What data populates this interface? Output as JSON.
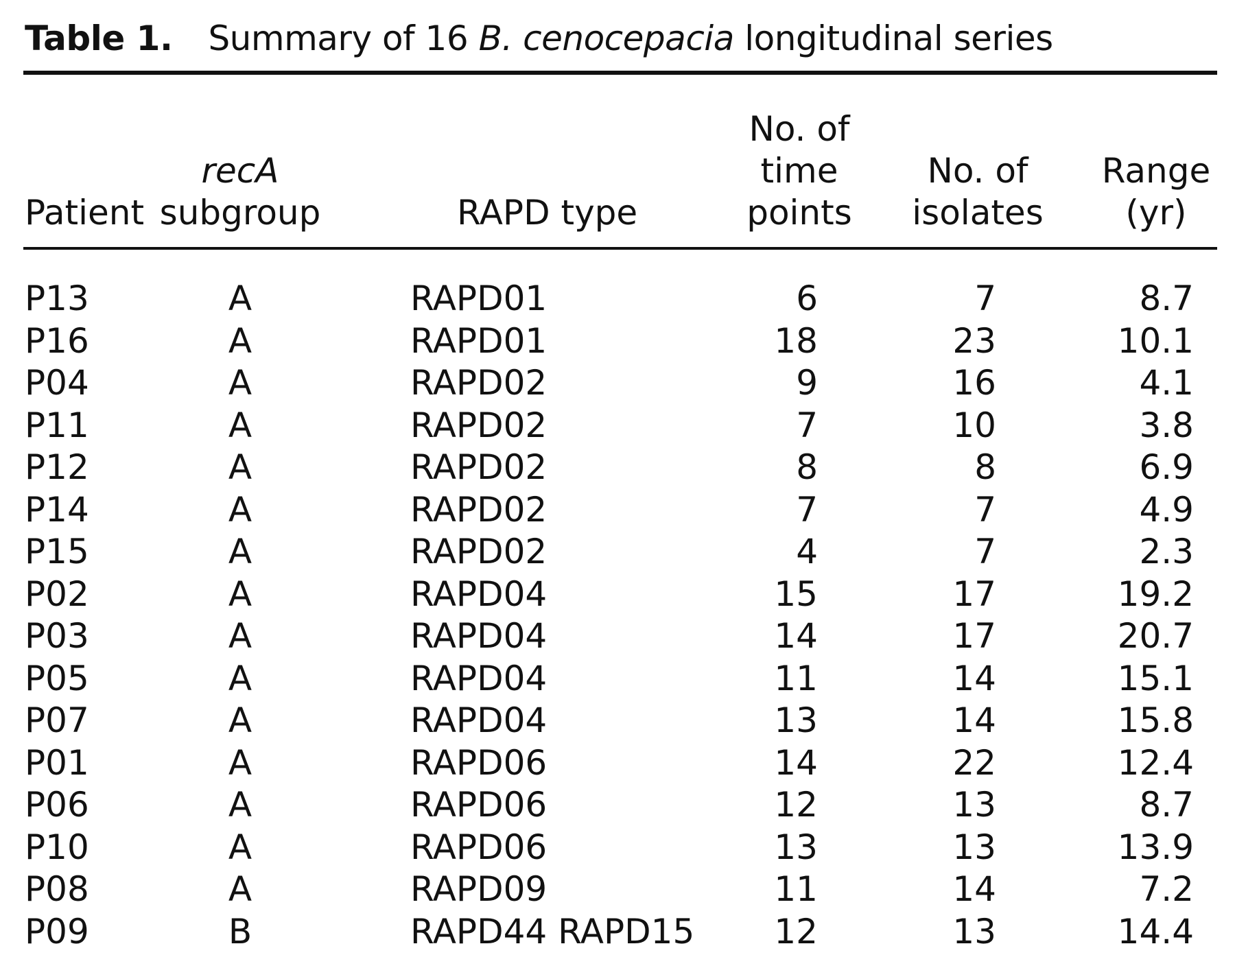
{
  "title": {
    "label": "Table 1.",
    "pre": "Summary of 16 ",
    "species": "B. cenocepacia",
    "post": " longitudinal series"
  },
  "headers": {
    "patient": [
      "Patient"
    ],
    "subgroup": [
      "recA",
      "subgroup"
    ],
    "rapd": [
      "RAPD type"
    ],
    "time_points": [
      "No. of",
      "time",
      "points"
    ],
    "isolates": [
      "No. of",
      "isolates"
    ],
    "range": [
      "Range",
      "(yr)"
    ]
  },
  "rows": [
    {
      "patient": "P13",
      "subgroup": "A",
      "rapd": "RAPD01",
      "time_points": "6",
      "isolates": "7",
      "range": "8.7"
    },
    {
      "patient": "P16",
      "subgroup": "A",
      "rapd": "RAPD01",
      "time_points": "18",
      "isolates": "23",
      "range": "10.1"
    },
    {
      "patient": "P04",
      "subgroup": "A",
      "rapd": "RAPD02",
      "time_points": "9",
      "isolates": "16",
      "range": "4.1"
    },
    {
      "patient": "P11",
      "subgroup": "A",
      "rapd": "RAPD02",
      "time_points": "7",
      "isolates": "10",
      "range": "3.8"
    },
    {
      "patient": "P12",
      "subgroup": "A",
      "rapd": "RAPD02",
      "time_points": "8",
      "isolates": "8",
      "range": "6.9"
    },
    {
      "patient": "P14",
      "subgroup": "A",
      "rapd": "RAPD02",
      "time_points": "7",
      "isolates": "7",
      "range": "4.9"
    },
    {
      "patient": "P15",
      "subgroup": "A",
      "rapd": "RAPD02",
      "time_points": "4",
      "isolates": "7",
      "range": "2.3"
    },
    {
      "patient": "P02",
      "subgroup": "A",
      "rapd": "RAPD04",
      "time_points": "15",
      "isolates": "17",
      "range": "19.2"
    },
    {
      "patient": "P03",
      "subgroup": "A",
      "rapd": "RAPD04",
      "time_points": "14",
      "isolates": "17",
      "range": "20.7"
    },
    {
      "patient": "P05",
      "subgroup": "A",
      "rapd": "RAPD04",
      "time_points": "11",
      "isolates": "14",
      "range": "15.1"
    },
    {
      "patient": "P07",
      "subgroup": "A",
      "rapd": "RAPD04",
      "time_points": "13",
      "isolates": "14",
      "range": "15.8"
    },
    {
      "patient": "P01",
      "subgroup": "A",
      "rapd": "RAPD06",
      "time_points": "14",
      "isolates": "22",
      "range": "12.4"
    },
    {
      "patient": "P06",
      "subgroup": "A",
      "rapd": "RAPD06",
      "time_points": "12",
      "isolates": "13",
      "range": "8.7"
    },
    {
      "patient": "P10",
      "subgroup": "A",
      "rapd": "RAPD06",
      "time_points": "13",
      "isolates": "13",
      "range": "13.9"
    },
    {
      "patient": "P08",
      "subgroup": "A",
      "rapd": "RAPD09",
      "time_points": "11",
      "isolates": "14",
      "range": "7.2"
    },
    {
      "patient": "P09",
      "subgroup": "B",
      "rapd": "RAPD44 RAPD15",
      "time_points": "12",
      "isolates": "13",
      "range": "14.4"
    }
  ]
}
